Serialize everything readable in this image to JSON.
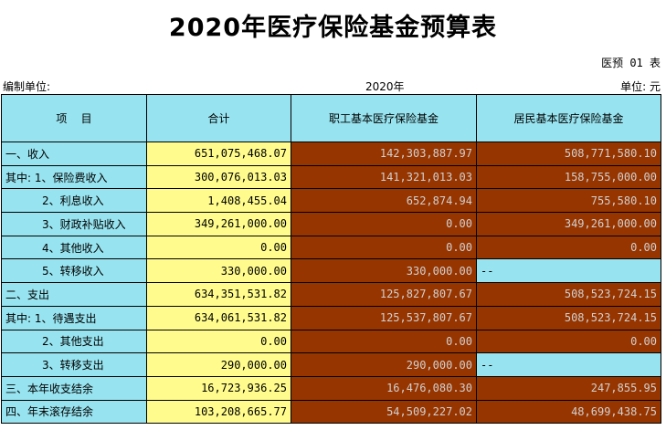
{
  "title": "2020年医疗保险基金预算表",
  "form_no": "医预 01 表",
  "preparer_label": "编制单位:",
  "year": "2020年",
  "unit": "单位: 元",
  "headers": [
    "项    目",
    "合计",
    "职工基本医疗保险基金",
    "居民基本医疗保险基金"
  ],
  "rows": [
    {
      "label": "一、收入",
      "total": "651,075,468.07",
      "employee": "142,303,887.97",
      "resident": "508,771,580.10",
      "indent": false,
      "resident_na": false
    },
    {
      "label": "其中: 1、保险费收入",
      "total": "300,076,013.03",
      "employee": "141,321,013.03",
      "resident": "158,755,000.00",
      "indent": false,
      "resident_na": false
    },
    {
      "label": "2、利息收入",
      "total": "1,408,455.04",
      "employee": "652,874.94",
      "resident": "755,580.10",
      "indent": true,
      "resident_na": false
    },
    {
      "label": "3、财政补贴收入",
      "total": "349,261,000.00",
      "employee": "0.00",
      "resident": "349,261,000.00",
      "indent": true,
      "resident_na": false
    },
    {
      "label": "4、其他收入",
      "total": "0.00",
      "employee": "0.00",
      "resident": "0.00",
      "indent": true,
      "resident_na": false
    },
    {
      "label": "5、转移收入",
      "total": "330,000.00",
      "employee": "330,000.00",
      "resident": "--",
      "indent": true,
      "resident_na": true
    },
    {
      "label": "二、支出",
      "total": "634,351,531.82",
      "employee": "125,827,807.67",
      "resident": "508,523,724.15",
      "indent": false,
      "resident_na": false
    },
    {
      "label": "其中: 1、待遇支出",
      "total": "634,061,531.82",
      "employee": "125,537,807.67",
      "resident": "508,523,724.15",
      "indent": false,
      "resident_na": false
    },
    {
      "label": "2、其他支出",
      "total": "0.00",
      "employee": "0.00",
      "resident": "0.00",
      "indent": true,
      "resident_na": false
    },
    {
      "label": "3、转移支出",
      "total": "290,000.00",
      "employee": "290,000.00",
      "resident": "--",
      "indent": true,
      "resident_na": true
    },
    {
      "label": "三、本年收支结余",
      "total": "16,723,936.25",
      "employee": "16,476,080.30",
      "resident": "247,855.95",
      "indent": false,
      "resident_na": false
    },
    {
      "label": "四、年末滚存结余",
      "total": "103,208,665.77",
      "employee": "54,509,227.02",
      "resident": "48,699,438.75",
      "indent": false,
      "resident_na": false
    }
  ]
}
